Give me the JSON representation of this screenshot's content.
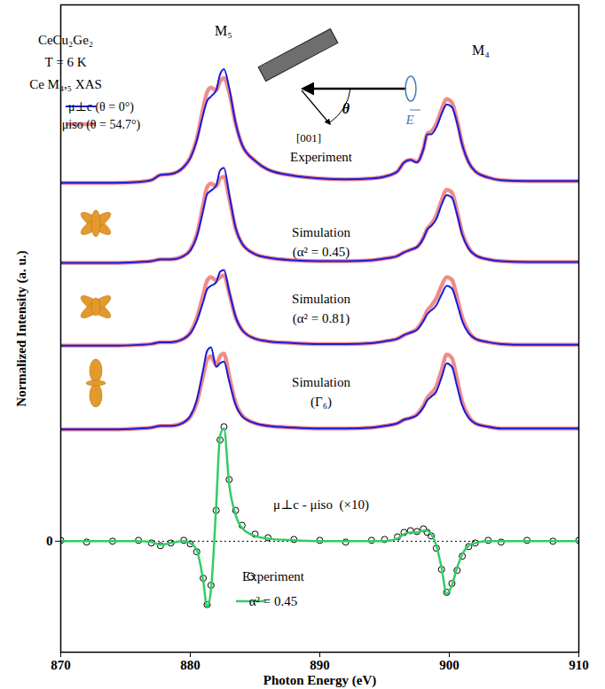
{
  "chart_data": {
    "type": "line",
    "x_label": "Photon Energy (eV)",
    "y_label": "Normalized Intensity (a. u.)",
    "xlim": [
      870,
      910
    ],
    "xticks": [
      870,
      880,
      890,
      900,
      910
    ],
    "ylim": [
      -1.26,
      6.09
    ],
    "yticks": [
      0
    ],
    "legend": "upper left",
    "header": [
      "CeCu₂Ge₂",
      "T = 6 K",
      "Ce M₄,₅ XAS"
    ],
    "edge_labels": [
      "M₅",
      "M₄"
    ],
    "geometry_labels": [
      "θ",
      "[001]",
      "E"
    ],
    "x": [
      870,
      872,
      874,
      876,
      877,
      877.7,
      878.5,
      879.5,
      880,
      880.5,
      881,
      881.3,
      881.6,
      882,
      882.3,
      882.6,
      883,
      883.5,
      884,
      885,
      886,
      888,
      890,
      892,
      894,
      895,
      896,
      896.5,
      897,
      897.5,
      898,
      898.3,
      898.6,
      899,
      899.4,
      899.8,
      900.2,
      900.6,
      901,
      901.5,
      902,
      903,
      904,
      906,
      908,
      910
    ],
    "panels": [
      {
        "label": "Experiment",
        "series": [
          {
            "name": "μ⊥c (θ = 0°)",
            "color": "#1a1adb",
            "values": [
              4.07,
              4.07,
              4.07,
              4.08,
              4.1,
              4.16,
              4.17,
              4.25,
              4.35,
              4.55,
              4.85,
              5.0,
              5.05,
              5.12,
              5.3,
              5.36,
              5.15,
              4.75,
              4.5,
              4.32,
              4.22,
              4.15,
              4.12,
              4.11,
              4.12,
              4.14,
              4.2,
              4.3,
              4.33,
              4.3,
              4.45,
              4.62,
              4.62,
              4.7,
              4.85,
              4.96,
              4.93,
              4.75,
              4.5,
              4.3,
              4.2,
              4.13,
              4.1,
              4.09,
              4.09,
              4.09
            ]
          },
          {
            "name": "μiso (θ = 54.7°)",
            "color": "#f08c8c",
            "values": [
              4.07,
              4.07,
              4.07,
              4.08,
              4.1,
              4.16,
              4.17,
              4.25,
              4.36,
              4.57,
              4.92,
              5.1,
              5.15,
              5.12,
              5.22,
              5.26,
              5.1,
              4.74,
              4.5,
              4.32,
              4.22,
              4.15,
              4.12,
              4.11,
              4.12,
              4.14,
              4.2,
              4.3,
              4.33,
              4.31,
              4.46,
              4.63,
              4.65,
              4.74,
              4.9,
              5.02,
              4.98,
              4.78,
              4.51,
              4.3,
              4.2,
              4.13,
              4.1,
              4.09,
              4.09,
              4.09
            ]
          }
        ]
      },
      {
        "label": "Simulation (α² = 0.45)",
        "series": [
          {
            "name": "μ⊥c (θ = 0°)",
            "color": "#1a1adb",
            "values": [
              3.16,
              3.16,
              3.16,
              3.17,
              3.18,
              3.2,
              3.2,
              3.24,
              3.3,
              3.46,
              3.76,
              3.94,
              3.98,
              4.04,
              4.21,
              4.24,
              3.94,
              3.56,
              3.38,
              3.26,
              3.22,
              3.19,
              3.18,
              3.18,
              3.19,
              3.21,
              3.24,
              3.28,
              3.31,
              3.34,
              3.44,
              3.54,
              3.58,
              3.66,
              3.82,
              3.93,
              3.9,
              3.71,
              3.48,
              3.32,
              3.25,
              3.2,
              3.18,
              3.17,
              3.17,
              3.17
            ]
          },
          {
            "name": "μiso (θ = 54.7°)",
            "color": "#f08c8c",
            "values": [
              3.16,
              3.16,
              3.16,
              3.17,
              3.18,
              3.2,
              3.2,
              3.24,
              3.31,
              3.48,
              3.82,
              4.02,
              4.06,
              4.03,
              4.12,
              4.14,
              3.9,
              3.55,
              3.38,
              3.26,
              3.22,
              3.19,
              3.18,
              3.18,
              3.19,
              3.21,
              3.24,
              3.28,
              3.31,
              3.34,
              3.45,
              3.55,
              3.6,
              3.7,
              3.87,
              3.99,
              3.96,
              3.75,
              3.5,
              3.33,
              3.25,
              3.2,
              3.18,
              3.17,
              3.17,
              3.17
            ]
          }
        ]
      },
      {
        "label": "Simulation (α² = 0.81)",
        "series": [
          {
            "name": "μ⊥c (θ = 0°)",
            "color": "#1a1adb",
            "values": [
              2.22,
              2.22,
              2.22,
              2.23,
              2.24,
              2.26,
              2.26,
              2.3,
              2.36,
              2.5,
              2.72,
              2.86,
              2.9,
              2.94,
              3.06,
              3.08,
              2.84,
              2.55,
              2.4,
              2.3,
              2.27,
              2.25,
              2.24,
              2.24,
              2.25,
              2.27,
              2.3,
              2.34,
              2.37,
              2.4,
              2.5,
              2.58,
              2.62,
              2.68,
              2.8,
              2.9,
              2.87,
              2.7,
              2.5,
              2.36,
              2.3,
              2.26,
              2.24,
              2.23,
              2.23,
              2.23
            ]
          },
          {
            "name": "μiso (θ = 54.7°)",
            "color": "#f08c8c",
            "values": [
              2.22,
              2.22,
              2.22,
              2.23,
              2.24,
              2.26,
              2.26,
              2.3,
              2.37,
              2.53,
              2.8,
              2.96,
              3.0,
              2.96,
              3.0,
              3.02,
              2.82,
              2.54,
              2.4,
              2.3,
              2.27,
              2.25,
              2.24,
              2.24,
              2.25,
              2.27,
              2.3,
              2.34,
              2.37,
              2.41,
              2.52,
              2.62,
              2.67,
              2.76,
              2.9,
              3.0,
              2.97,
              2.77,
              2.54,
              2.38,
              2.3,
              2.26,
              2.24,
              2.23,
              2.23,
              2.23
            ]
          }
        ]
      },
      {
        "label": "Simulation (Γ₆)",
        "series": [
          {
            "name": "μ⊥c (θ = 0°)",
            "color": "#1a1adb",
            "values": [
              1.27,
              1.27,
              1.27,
              1.28,
              1.29,
              1.31,
              1.31,
              1.35,
              1.42,
              1.6,
              1.95,
              2.16,
              2.2,
              1.98,
              2.02,
              2.04,
              1.82,
              1.55,
              1.42,
              1.34,
              1.31,
              1.29,
              1.28,
              1.28,
              1.29,
              1.31,
              1.34,
              1.38,
              1.4,
              1.43,
              1.52,
              1.6,
              1.64,
              1.7,
              1.86,
              2.02,
              1.98,
              1.76,
              1.54,
              1.4,
              1.34,
              1.3,
              1.28,
              1.28,
              1.28,
              1.28
            ]
          },
          {
            "name": "μiso (θ = 54.7°)",
            "color": "#f08c8c",
            "values": [
              1.27,
              1.27,
              1.27,
              1.28,
              1.29,
              1.31,
              1.31,
              1.35,
              1.41,
              1.57,
              1.88,
              2.06,
              2.1,
              2.0,
              2.1,
              2.13,
              1.88,
              1.57,
              1.43,
              1.34,
              1.31,
              1.29,
              1.28,
              1.28,
              1.29,
              1.31,
              1.34,
              1.38,
              1.4,
              1.44,
              1.54,
              1.63,
              1.68,
              1.76,
              1.94,
              2.12,
              2.08,
              1.84,
              1.58,
              1.42,
              1.34,
              1.3,
              1.28,
              1.28,
              1.28,
              1.28
            ]
          }
        ]
      }
    ],
    "difference": {
      "label": "μ⊥c - μiso  (×10)",
      "series": [
        {
          "name": "Experiment",
          "type": "scatter",
          "marker": "circle",
          "color": "#000000",
          "values": [
            0.01,
            -0.01,
            0,
            0.01,
            -0.02,
            -0.05,
            -0.02,
            0.01,
            -0.03,
            -0.12,
            -0.42,
            -0.72,
            -0.5,
            0.35,
            1.15,
            1.3,
            0.7,
            0.35,
            0.18,
            0.08,
            0.04,
            0.02,
            0.01,
            -0.01,
            0.01,
            0.02,
            0.05,
            0.1,
            0.12,
            0.11,
            0.14,
            0.1,
            0.06,
            -0.08,
            -0.32,
            -0.58,
            -0.48,
            -0.33,
            -0.17,
            -0.06,
            -0.02,
            0.01,
            -0.01,
            0.01,
            0,
            0.01
          ]
        },
        {
          "name": "α² = 0.45",
          "type": "line",
          "line_style": "solid",
          "color": "#33cc66",
          "values": [
            0,
            0,
            0,
            0,
            -0.01,
            -0.04,
            -0.02,
            0,
            -0.02,
            -0.1,
            -0.45,
            -0.75,
            -0.55,
            0.4,
            1.2,
            1.28,
            0.65,
            0.3,
            0.15,
            0.06,
            0.03,
            0.01,
            0,
            0,
            0,
            0,
            0.03,
            0.08,
            0.1,
            0.1,
            0.12,
            0.12,
            0.08,
            -0.05,
            -0.3,
            -0.6,
            -0.5,
            -0.3,
            -0.15,
            -0.05,
            -0.02,
            0,
            0,
            0,
            0,
            0
          ]
        }
      ]
    }
  }
}
